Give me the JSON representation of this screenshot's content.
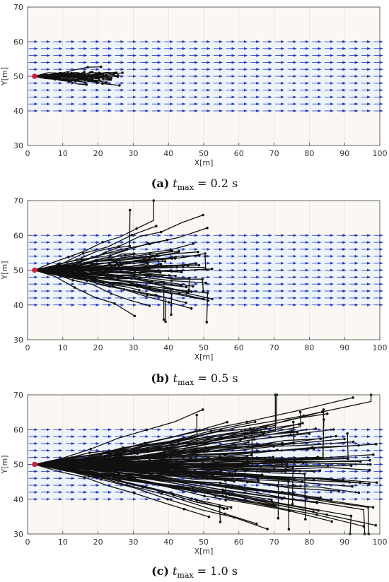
{
  "colors": {
    "plot_bg": "#fbf8f3",
    "flow_bg": "#eef4fb",
    "arrow": "#1f35c9",
    "path": "#111111",
    "start": "#d11f3b",
    "grid": "#e4e1dc",
    "axis": "#444444"
  },
  "chart_data": [
    {
      "type": "scatter",
      "panel": "(a)",
      "caption": {
        "letter": "(a)",
        "var": "t",
        "sub": "max",
        "rest": " = 0.2 s"
      },
      "xlabel": "X[m]",
      "ylabel": "Y[m]",
      "xlim": [
        0,
        100
      ],
      "ylim": [
        30,
        70
      ],
      "xticks": [
        "0",
        "10",
        "20",
        "30",
        "40",
        "50",
        "60",
        "70",
        "80",
        "90",
        "100"
      ],
      "yticks": [
        "30",
        "40",
        "50",
        "60",
        "70"
      ],
      "grid": true,
      "flow_field": {
        "x_range": [
          0,
          100
        ],
        "y_range": [
          40,
          60
        ],
        "direction": "+x"
      },
      "start_point": [
        2,
        50
      ],
      "max_x": 27,
      "min_y": 47,
      "max_y": 53,
      "branches": 30
    },
    {
      "type": "scatter",
      "panel": "(b)",
      "caption": {
        "letter": "(b)",
        "var": "t",
        "sub": "max",
        "rest": " = 0.5 s"
      },
      "xlabel": "X[m]",
      "ylabel": "Y[m]",
      "xlim": [
        0,
        100
      ],
      "ylim": [
        30,
        70
      ],
      "xticks": [
        "0",
        "10",
        "20",
        "30",
        "40",
        "50",
        "60",
        "70",
        "80",
        "90",
        "100"
      ],
      "yticks": [
        "30",
        "40",
        "50",
        "60",
        "70"
      ],
      "grid": true,
      "flow_field": {
        "x_range": [
          0,
          100
        ],
        "y_range": [
          40,
          60
        ],
        "direction": "+x"
      },
      "start_point": [
        2,
        50
      ],
      "max_x": 53,
      "min_y": 34,
      "max_y": 68,
      "branches": 60
    },
    {
      "type": "scatter",
      "panel": "(c)",
      "caption": {
        "letter": "(c)",
        "var": "t",
        "sub": "max",
        "rest": " = 1.0 s"
      },
      "xlabel": "X[m]",
      "ylabel": "Y[m]",
      "xlim": [
        0,
        100
      ],
      "ylim": [
        30,
        70
      ],
      "xticks": [
        "0",
        "10",
        "20",
        "30",
        "40",
        "50",
        "60",
        "70",
        "80",
        "90",
        "100"
      ],
      "yticks": [
        "30",
        "40",
        "50",
        "60",
        "70"
      ],
      "grid": true,
      "flow_field": {
        "x_range": [
          0,
          100
        ],
        "y_range": [
          40,
          60
        ],
        "direction": "+x"
      },
      "start_point": [
        2,
        50
      ],
      "max_x": 100,
      "min_y": 30,
      "max_y": 70,
      "branches": 110
    }
  ]
}
